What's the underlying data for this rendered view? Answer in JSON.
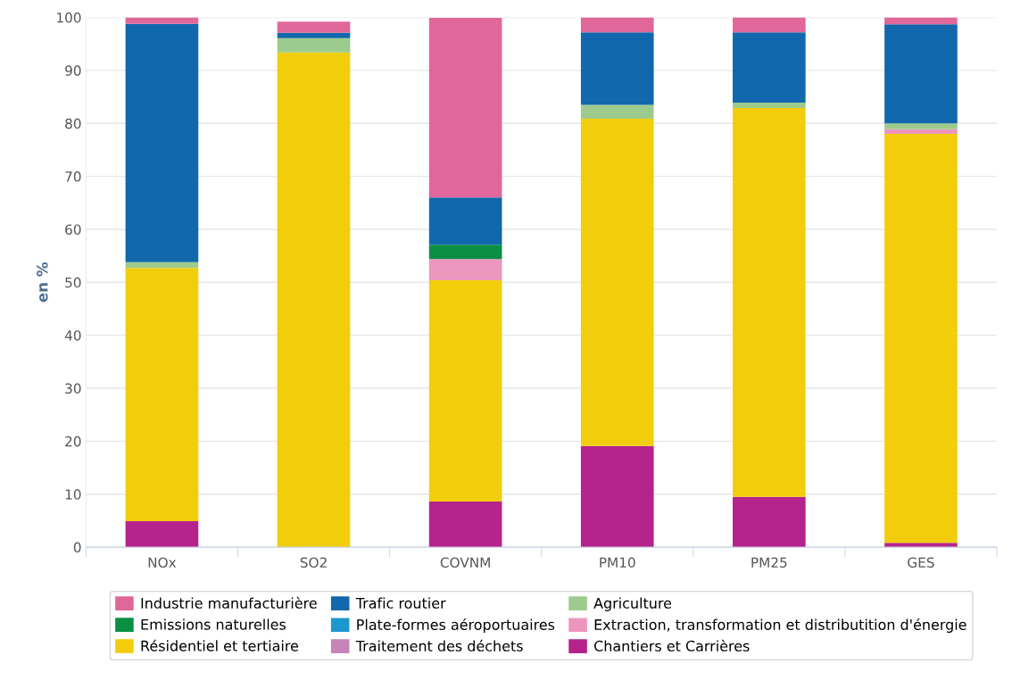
{
  "chart_data": {
    "type": "bar",
    "stacked": true,
    "ylabel": "en %",
    "categories": [
      "NOx",
      "SO2",
      "COVNM",
      "PM10",
      "PM25",
      "GES"
    ],
    "ylim": [
      0,
      100
    ],
    "yticks": [
      0,
      10,
      20,
      30,
      40,
      50,
      60,
      70,
      80,
      90,
      100
    ],
    "grid": "y",
    "legend": "bottom",
    "series": [
      {
        "name": "Chantiers et Carrières",
        "color": "#b5238c",
        "values": [
          4.9,
          0,
          8.6,
          19.1,
          9.5,
          0.8
        ]
      },
      {
        "name": "Traitement des déchets",
        "color": "#c584b8",
        "values": [
          0,
          0,
          0,
          0,
          0,
          0
        ]
      },
      {
        "name": "Résidentiel et tertiaire",
        "color": "#f2cd0c",
        "values": [
          47.8,
          93.4,
          41.8,
          61.8,
          73.4,
          77.2
        ]
      },
      {
        "name": "Extraction, transformation et distributition d'énergie",
        "color": "#ec96be",
        "values": [
          0,
          0,
          4,
          0,
          0,
          0.9
        ]
      },
      {
        "name": "Plate-formes aéroportuaires",
        "color": "#1d97cf",
        "values": [
          0,
          0,
          0,
          0,
          0,
          0
        ]
      },
      {
        "name": "Emissions naturelles",
        "color": "#0b8f45",
        "values": [
          0,
          0,
          2.7,
          0,
          0,
          0
        ]
      },
      {
        "name": "Agriculture",
        "color": "#9dcb8d",
        "values": [
          1.1,
          2.7,
          0,
          2.6,
          1,
          1.1
        ]
      },
      {
        "name": "Trafic routier",
        "color": "#1168ac",
        "values": [
          45,
          1,
          8.9,
          13.7,
          13.3,
          18.7
        ]
      },
      {
        "name": "Industrie manufacturière",
        "color": "#e0679a",
        "values": [
          1.2,
          2.1,
          33.9,
          2.8,
          2.8,
          1.3
        ]
      }
    ]
  }
}
